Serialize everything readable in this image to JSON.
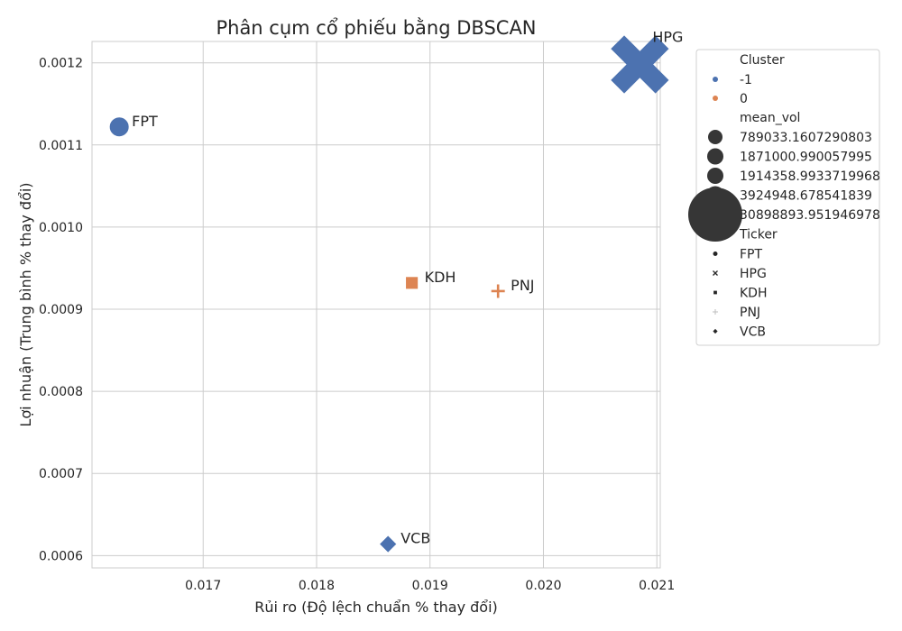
{
  "chart_data": {
    "type": "scatter",
    "title": "Phân cụm cổ phiếu bằng DBSCAN",
    "xlabel": "Rủi ro (Độ lệch chuẩn % thay đổi)",
    "ylabel": "Lợi nhuận (Trung bình % thay đổi)",
    "xlim": [
      0.01602,
      0.02103
    ],
    "ylim": [
      0.000585,
      0.001226
    ],
    "xticks": [
      "0.017",
      "0.018",
      "0.019",
      "0.020",
      "0.021"
    ],
    "xtick_values": [
      0.017,
      0.018,
      0.019,
      0.02,
      0.021
    ],
    "yticks": [
      "0.0006",
      "0.0007",
      "0.0008",
      "0.0009",
      "0.0010",
      "0.0011",
      "0.0012"
    ],
    "ytick_values": [
      0.0006,
      0.0007,
      0.0008,
      0.0009,
      0.001,
      0.0011,
      0.0012
    ],
    "grid": true,
    "legend_position": "outside-right",
    "cluster_colors": {
      "-1": "#4c72b0",
      "0": "#dd8452"
    },
    "points": [
      {
        "ticker": "FPT",
        "x": 0.01626,
        "y": 0.001122,
        "cluster": "-1",
        "marker": "circle",
        "mean_vol": 3924948.678541839
      },
      {
        "ticker": "HPG",
        "x": 0.02085,
        "y": 0.001198,
        "cluster": "-1",
        "marker": "x",
        "mean_vol": 30898893.951946978
      },
      {
        "ticker": "KDH",
        "x": 0.01884,
        "y": 0.000932,
        "cluster": "0",
        "marker": "square",
        "mean_vol": 1871000.990057995
      },
      {
        "ticker": "PNJ",
        "x": 0.0196,
        "y": 0.000922,
        "cluster": "0",
        "marker": "plus",
        "mean_vol": 789033.1607290803
      },
      {
        "ticker": "VCB",
        "x": 0.01863,
        "y": 0.000614,
        "cluster": "-1",
        "marker": "diamond",
        "mean_vol": 1914358.9933719968
      }
    ],
    "legend": {
      "cluster_title": "Cluster",
      "clusters": [
        "-1",
        "0"
      ],
      "size_title": "mean_vol",
      "sizes": [
        "789033.1607290803",
        "1871000.990057995",
        "1914358.9933719968",
        "3924948.678541839",
        "30898893.951946978"
      ],
      "size_values": [
        789033.1607290803,
        1871000.990057995,
        1914358.9933719968,
        3924948.678541839,
        30898893.951946978
      ],
      "ticker_title": "Ticker",
      "tickers": [
        "FPT",
        "HPG",
        "KDH",
        "PNJ",
        "VCB"
      ],
      "ticker_markers": [
        "circle",
        "x",
        "square",
        "plus",
        "diamond"
      ]
    }
  }
}
